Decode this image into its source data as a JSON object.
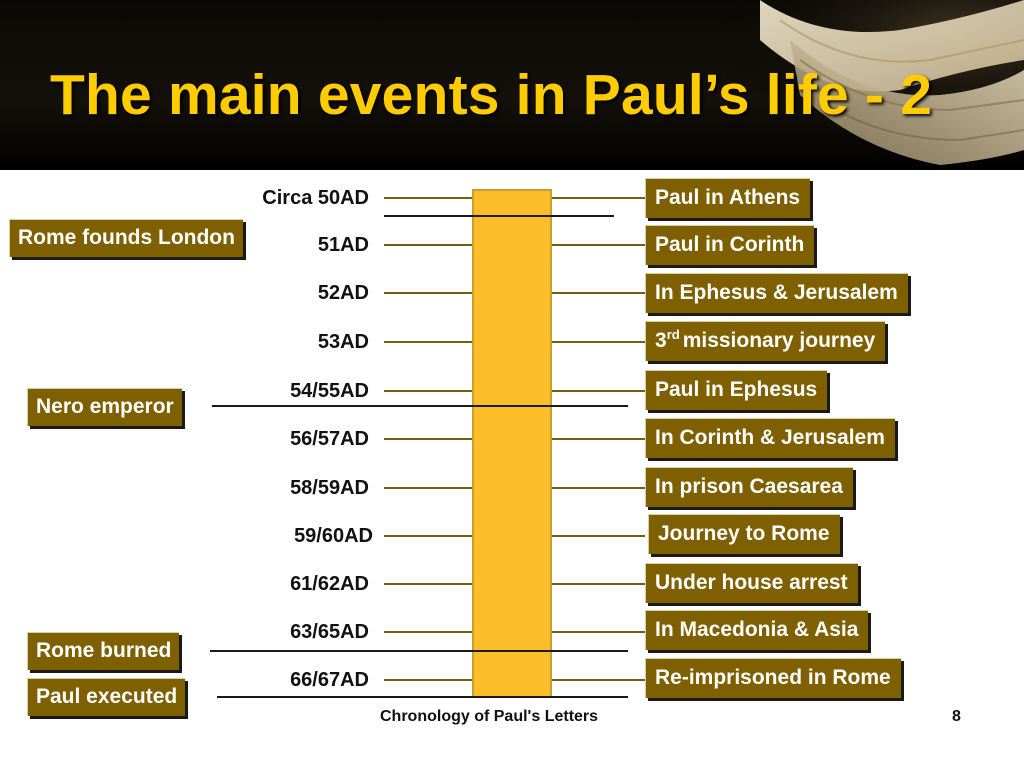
{
  "slide": {
    "title": "The main events in Paul’s life - 2",
    "footer_title": "Chronology of Paul's Letters",
    "page_number": "8"
  },
  "colors": {
    "title": "#ffcc00",
    "box_fill": "#7f6000",
    "bar_fill": "#fbbd28",
    "connector": "#7a5d12"
  },
  "timeline": {
    "dates": [
      "Circa 50AD",
      "51AD",
      "52AD",
      "53AD",
      "54/55AD",
      "56/57AD",
      "58/59AD",
      "59/60AD",
      "61/62AD",
      "63/65AD",
      "66/67AD"
    ],
    "events": [
      {
        "text": "Paul in Athens"
      },
      {
        "text": "Paul in Corinth"
      },
      {
        "text": "In Ephesus & Jerusalem"
      },
      {
        "prefix": "3",
        "sup": "rd",
        "text": "missionary journey"
      },
      {
        "text": "Paul in Ephesus"
      },
      {
        "text": "In Corinth & Jerusalem"
      },
      {
        "text": "In prison Caesarea"
      },
      {
        "text": "Journey to Rome"
      },
      {
        "text": "Under house arrest"
      },
      {
        "text": "In Macedonia & Asia"
      },
      {
        "text": "Re-imprisoned in Rome"
      }
    ],
    "world_events": [
      "Rome founds London",
      "Nero emperor",
      "Rome burned",
      "Paul executed"
    ]
  }
}
